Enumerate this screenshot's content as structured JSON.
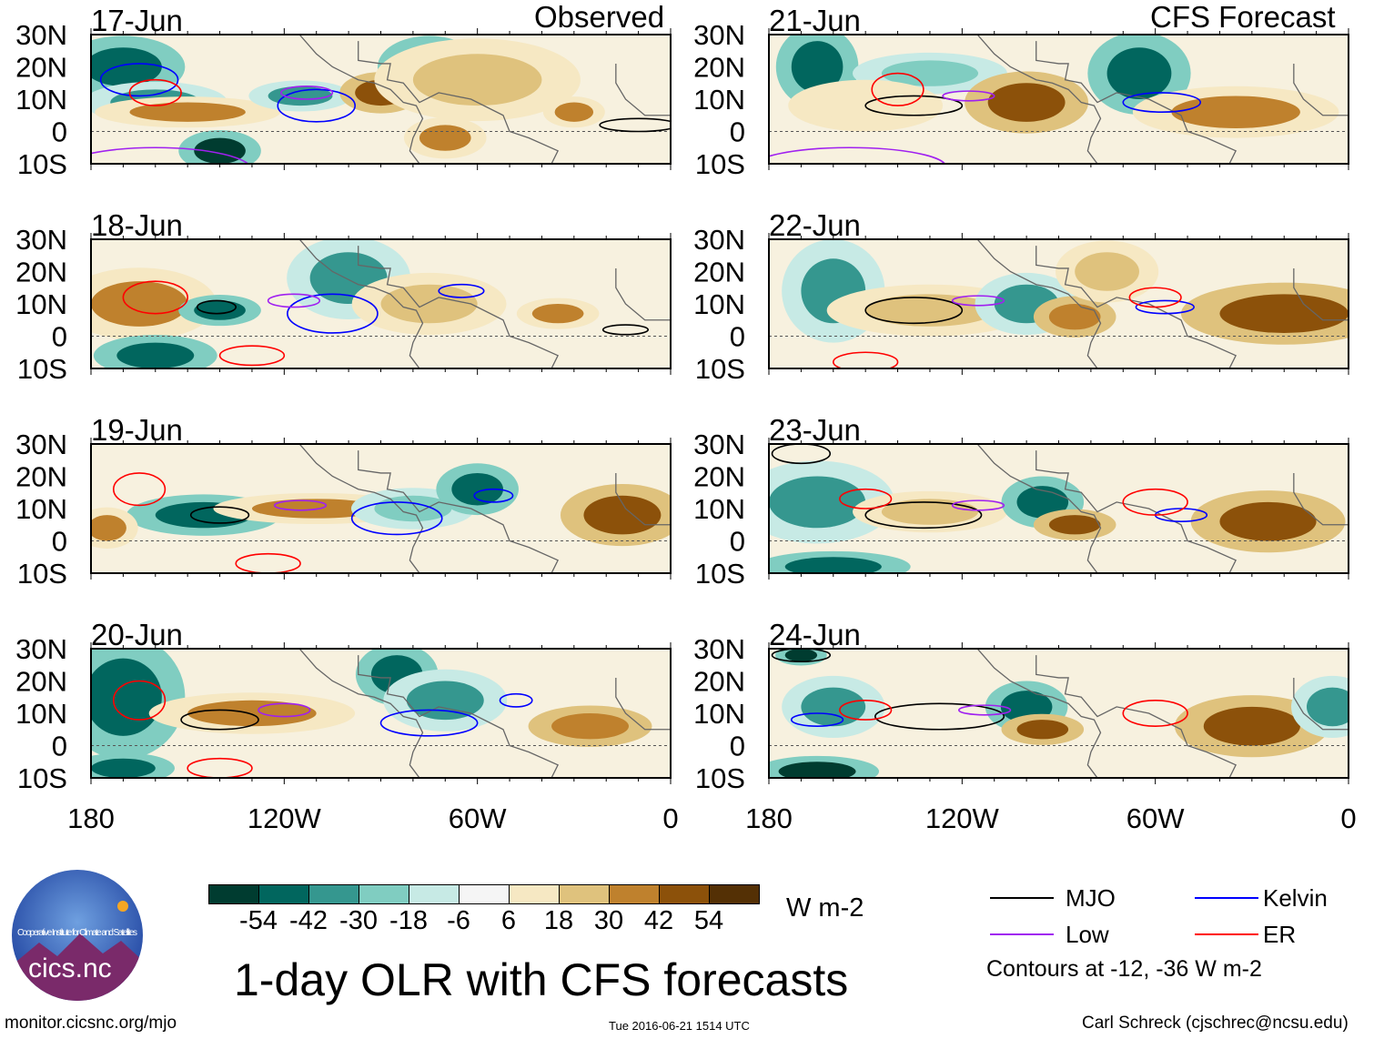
{
  "panels_left_header": "Observed",
  "panels_right_header": "CFS Forecast",
  "lat_labels": [
    "30N",
    "20N",
    "10N",
    "0",
    "10S"
  ],
  "lon_labels": [
    "180",
    "120W",
    "60W",
    "0"
  ],
  "panels": [
    {
      "date": "17-Jun",
      "col": "left",
      "row": 0,
      "blobs": [
        {
          "lon": -170,
          "lat": 20,
          "rl": 12,
          "rt": 6,
          "v": -50
        },
        {
          "lon": -160,
          "lat": 9,
          "rl": 14,
          "rt": 4,
          "v": -40
        },
        {
          "lon": -150,
          "lat": 6,
          "rl": 18,
          "rt": 3,
          "v": 30
        },
        {
          "lon": -115,
          "lat": 11,
          "rl": 10,
          "rt": 3,
          "v": -35
        },
        {
          "lon": -90,
          "lat": 12,
          "rl": 8,
          "rt": 4,
          "v": 45
        },
        {
          "lon": -75,
          "lat": 20,
          "rl": 10,
          "rt": 6,
          "v": -45
        },
        {
          "lon": -60,
          "lat": 16,
          "rl": 20,
          "rt": 8,
          "v": 25
        },
        {
          "lon": -140,
          "lat": -6,
          "rl": 8,
          "rt": 4,
          "v": -55
        },
        {
          "lon": -70,
          "lat": -2,
          "rl": 8,
          "rt": 4,
          "v": 35
        },
        {
          "lon": -30,
          "lat": 6,
          "rl": 6,
          "rt": 3,
          "v": 30
        }
      ],
      "contours": [
        {
          "t": "kelvin",
          "lon": -165,
          "lat": 16,
          "rl": 12,
          "rt": 5
        },
        {
          "t": "kelvin",
          "lon": -110,
          "lat": 8,
          "rl": 12,
          "rt": 5
        },
        {
          "t": "er",
          "lon": -160,
          "lat": 12,
          "rl": 8,
          "rt": 4
        },
        {
          "t": "low",
          "lon": -113,
          "lat": 12,
          "rl": 8,
          "rt": 2
        },
        {
          "t": "mjo",
          "lon": -10,
          "lat": 2,
          "rl": 12,
          "rt": 2
        },
        {
          "t": "low",
          "lon": -160,
          "lat": -12,
          "rl": 30,
          "rt": 7
        }
      ]
    },
    {
      "date": "18-Jun",
      "col": "left",
      "row": 1,
      "blobs": [
        {
          "lon": -165,
          "lat": 10,
          "rl": 15,
          "rt": 7,
          "v": 30
        },
        {
          "lon": -140,
          "lat": 8,
          "rl": 8,
          "rt": 3,
          "v": -45
        },
        {
          "lon": -100,
          "lat": 18,
          "rl": 12,
          "rt": 8,
          "v": -35
        },
        {
          "lon": -75,
          "lat": 10,
          "rl": 15,
          "rt": 6,
          "v": 20
        },
        {
          "lon": -35,
          "lat": 7,
          "rl": 8,
          "rt": 3,
          "v": 35
        },
        {
          "lon": -160,
          "lat": -6,
          "rl": 12,
          "rt": 4,
          "v": -50
        }
      ],
      "contours": [
        {
          "t": "kelvin",
          "lon": -105,
          "lat": 7,
          "rl": 14,
          "rt": 6
        },
        {
          "t": "kelvin",
          "lon": -65,
          "lat": 14,
          "rl": 7,
          "rt": 2
        },
        {
          "t": "low",
          "lon": -117,
          "lat": 11,
          "rl": 8,
          "rt": 2
        },
        {
          "t": "mjo",
          "lon": -141,
          "lat": 9,
          "rl": 6,
          "rt": 2
        },
        {
          "t": "mjo",
          "lon": -14,
          "lat": 2,
          "rl": 7,
          "rt": 1.5
        },
        {
          "t": "er",
          "lon": -160,
          "lat": 12,
          "rl": 10,
          "rt": 5
        },
        {
          "t": "er",
          "lon": -130,
          "lat": -6,
          "rl": 10,
          "rt": 3
        }
      ]
    },
    {
      "date": "19-Jun",
      "col": "left",
      "row": 2,
      "blobs": [
        {
          "lon": -145,
          "lat": 8,
          "rl": 15,
          "rt": 4,
          "v": -50
        },
        {
          "lon": -110,
          "lat": 10,
          "rl": 20,
          "rt": 3,
          "v": 30
        },
        {
          "lon": -80,
          "lat": 10,
          "rl": 12,
          "rt": 4,
          "v": -25
        },
        {
          "lon": -60,
          "lat": 16,
          "rl": 8,
          "rt": 5,
          "v": -50
        },
        {
          "lon": -15,
          "lat": 8,
          "rl": 12,
          "rt": 6,
          "v": 45
        },
        {
          "lon": -175,
          "lat": 4,
          "rl": 6,
          "rt": 4,
          "v": 30
        }
      ],
      "contours": [
        {
          "t": "mjo",
          "lon": -140,
          "lat": 8,
          "rl": 9,
          "rt": 2.5
        },
        {
          "t": "low",
          "lon": -115,
          "lat": 11,
          "rl": 8,
          "rt": 1.5
        },
        {
          "t": "kelvin",
          "lon": -85,
          "lat": 7,
          "rl": 14,
          "rt": 5
        },
        {
          "t": "kelvin",
          "lon": -55,
          "lat": 14,
          "rl": 6,
          "rt": 2
        },
        {
          "t": "er",
          "lon": -165,
          "lat": 16,
          "rl": 8,
          "rt": 5
        },
        {
          "t": "er",
          "lon": -125,
          "lat": -7,
          "rl": 10,
          "rt": 3
        }
      ]
    },
    {
      "date": "20-Jun",
      "col": "left",
      "row": 3,
      "blobs": [
        {
          "lon": -170,
          "lat": 15,
          "rl": 12,
          "rt": 12,
          "v": -45
        },
        {
          "lon": -130,
          "lat": 10,
          "rl": 20,
          "rt": 4,
          "v": 30
        },
        {
          "lon": -85,
          "lat": 22,
          "rl": 8,
          "rt": 6,
          "v": -50
        },
        {
          "lon": -70,
          "lat": 14,
          "rl": 12,
          "rt": 6,
          "v": -40
        },
        {
          "lon": -25,
          "lat": 6,
          "rl": 12,
          "rt": 4,
          "v": 40
        },
        {
          "lon": -170,
          "lat": -7,
          "rl": 10,
          "rt": 3,
          "v": -45
        }
      ],
      "contours": [
        {
          "t": "mjo",
          "lon": -140,
          "lat": 8,
          "rl": 12,
          "rt": 3
        },
        {
          "t": "low",
          "lon": -120,
          "lat": 11,
          "rl": 8,
          "rt": 2
        },
        {
          "t": "kelvin",
          "lon": -75,
          "lat": 7,
          "rl": 15,
          "rt": 4
        },
        {
          "t": "kelvin",
          "lon": -48,
          "lat": 14,
          "rl": 5,
          "rt": 2
        },
        {
          "t": "er",
          "lon": -165,
          "lat": 14,
          "rl": 8,
          "rt": 6
        },
        {
          "t": "er",
          "lon": -140,
          "lat": -7,
          "rl": 10,
          "rt": 3
        }
      ]
    },
    {
      "date": "21-Jun",
      "col": "right",
      "row": 0,
      "blobs": [
        {
          "lon": -165,
          "lat": 20,
          "rl": 8,
          "rt": 8,
          "v": -45
        },
        {
          "lon": -130,
          "lat": 18,
          "rl": 15,
          "rt": 4,
          "v": -25
        },
        {
          "lon": -100,
          "lat": 9,
          "rl": 12,
          "rt": 6,
          "v": 45
        },
        {
          "lon": -65,
          "lat": 18,
          "rl": 10,
          "rt": 8,
          "v": -45
        },
        {
          "lon": -35,
          "lat": 6,
          "rl": 20,
          "rt": 5,
          "v": 35
        },
        {
          "lon": -150,
          "lat": 8,
          "rl": 15,
          "rt": 5,
          "v": 15
        }
      ],
      "contours": [
        {
          "t": "mjo",
          "lon": -135,
          "lat": 8,
          "rl": 15,
          "rt": 3
        },
        {
          "t": "low",
          "lon": -118,
          "lat": 11,
          "rl": 8,
          "rt": 1.5
        },
        {
          "t": "kelvin",
          "lon": -58,
          "lat": 9,
          "rl": 12,
          "rt": 3
        },
        {
          "t": "er",
          "lon": -140,
          "lat": 13,
          "rl": 8,
          "rt": 5
        },
        {
          "t": "low",
          "lon": -155,
          "lat": -11,
          "rl": 30,
          "rt": 6
        }
      ]
    },
    {
      "date": "22-Jun",
      "col": "right",
      "row": 1,
      "blobs": [
        {
          "lon": -160,
          "lat": 14,
          "rl": 10,
          "rt": 10,
          "v": -40
        },
        {
          "lon": -130,
          "lat": 8,
          "rl": 20,
          "rt": 5,
          "v": 25
        },
        {
          "lon": -100,
          "lat": 10,
          "rl": 10,
          "rt": 6,
          "v": -35
        },
        {
          "lon": -85,
          "lat": 6,
          "rl": 8,
          "rt": 4,
          "v": 40
        },
        {
          "lon": -20,
          "lat": 7,
          "rl": 20,
          "rt": 6,
          "v": 50
        },
        {
          "lon": -75,
          "lat": 20,
          "rl": 10,
          "rt": 6,
          "v": 20
        }
      ],
      "contours": [
        {
          "t": "mjo",
          "lon": -135,
          "lat": 8,
          "rl": 15,
          "rt": 4
        },
        {
          "t": "low",
          "lon": -115,
          "lat": 11,
          "rl": 8,
          "rt": 1.5
        },
        {
          "t": "kelvin",
          "lon": -57,
          "lat": 9,
          "rl": 9,
          "rt": 2
        },
        {
          "t": "er",
          "lon": -60,
          "lat": 12,
          "rl": 8,
          "rt": 3
        },
        {
          "t": "er",
          "lon": -150,
          "lat": -8,
          "rl": 10,
          "rt": 3
        }
      ]
    },
    {
      "date": "23-Jun",
      "col": "right",
      "row": 2,
      "blobs": [
        {
          "lon": -165,
          "lat": 12,
          "rl": 15,
          "rt": 8,
          "v": -40
        },
        {
          "lon": -130,
          "lat": 9,
          "rl": 15,
          "rt": 4,
          "v": 20
        },
        {
          "lon": -95,
          "lat": 12,
          "rl": 8,
          "rt": 5,
          "v": -45
        },
        {
          "lon": -85,
          "lat": 5,
          "rl": 8,
          "rt": 3,
          "v": 45
        },
        {
          "lon": -25,
          "lat": 6,
          "rl": 15,
          "rt": 6,
          "v": 50
        },
        {
          "lon": -160,
          "lat": -8,
          "rl": 15,
          "rt": 3,
          "v": -50
        }
      ],
      "contours": [
        {
          "t": "mjo",
          "lon": -132,
          "lat": 8,
          "rl": 18,
          "rt": 4
        },
        {
          "t": "mjo",
          "lon": -170,
          "lat": 27,
          "rl": 9,
          "rt": 3
        },
        {
          "t": "low",
          "lon": -115,
          "lat": 11,
          "rl": 8,
          "rt": 1.5
        },
        {
          "t": "kelvin",
          "lon": -52,
          "lat": 8,
          "rl": 8,
          "rt": 2
        },
        {
          "t": "er",
          "lon": -60,
          "lat": 12,
          "rl": 10,
          "rt": 4
        },
        {
          "t": "er",
          "lon": -150,
          "lat": 13,
          "rl": 8,
          "rt": 3
        }
      ]
    },
    {
      "date": "24-Jun",
      "col": "right",
      "row": 3,
      "blobs": [
        {
          "lon": -170,
          "lat": 28,
          "rl": 5,
          "rt": 2,
          "v": -55
        },
        {
          "lon": -160,
          "lat": 12,
          "rl": 10,
          "rt": 6,
          "v": -40
        },
        {
          "lon": -100,
          "lat": 12,
          "rl": 8,
          "rt": 5,
          "v": -45
        },
        {
          "lon": -95,
          "lat": 5,
          "rl": 8,
          "rt": 3,
          "v": 45
        },
        {
          "lon": -30,
          "lat": 6,
          "rl": 15,
          "rt": 6,
          "v": 50
        },
        {
          "lon": -5,
          "lat": 12,
          "rl": 8,
          "rt": 6,
          "v": -35
        },
        {
          "lon": -165,
          "lat": -8,
          "rl": 12,
          "rt": 3,
          "v": -55
        }
      ],
      "contours": [
        {
          "t": "mjo",
          "lon": -127,
          "lat": 9,
          "rl": 20,
          "rt": 4
        },
        {
          "t": "mjo",
          "lon": -170,
          "lat": 28,
          "rl": 9,
          "rt": 2
        },
        {
          "t": "low",
          "lon": -113,
          "lat": 11,
          "rl": 8,
          "rt": 1.5
        },
        {
          "t": "kelvin",
          "lon": -165,
          "lat": 8,
          "rl": 8,
          "rt": 2
        },
        {
          "t": "er",
          "lon": -60,
          "lat": 10,
          "rl": 10,
          "rt": 4
        },
        {
          "t": "er",
          "lon": -150,
          "lat": 11,
          "rl": 8,
          "rt": 3
        }
      ]
    }
  ],
  "colorbar": {
    "bins": [
      "#003c30",
      "#01665e",
      "#35978f",
      "#80cdc1",
      "#c7eae5",
      "#f5f5f5",
      "#f6e8c3",
      "#dfc27d",
      "#bf812d",
      "#8c510a",
      "#543005"
    ],
    "labels": [
      "-54",
      "-42",
      "-30",
      "-18",
      "-6",
      "6",
      "18",
      "30",
      "42",
      "54"
    ],
    "thresholds": [
      -54,
      -42,
      -30,
      -18,
      -6,
      6,
      18,
      30,
      42,
      54
    ],
    "units": "W m-2"
  },
  "legend": {
    "items": [
      {
        "key": "mjo",
        "label": "MJO",
        "color": "#000000"
      },
      {
        "key": "kelvin",
        "label": "Kelvin",
        "color": "#0000ff"
      },
      {
        "key": "low",
        "label": "Low",
        "color": "#a020f0"
      },
      {
        "key": "er",
        "label": "ER",
        "color": "#ff0000"
      }
    ],
    "contours_note": "Contours at -12, -36 W m-2"
  },
  "title": "1-day OLR with CFS forecasts",
  "logo": {
    "text": "cics.nc",
    "ring_text": "Cooperative Institute for Climate and Satellites"
  },
  "footer": {
    "url": "monitor.cicsnc.org/mjo",
    "timestamp": "Tue 2016-06-21 1514 UTC",
    "author": "Carl Schreck (cjschrec@ncsu.edu)"
  }
}
